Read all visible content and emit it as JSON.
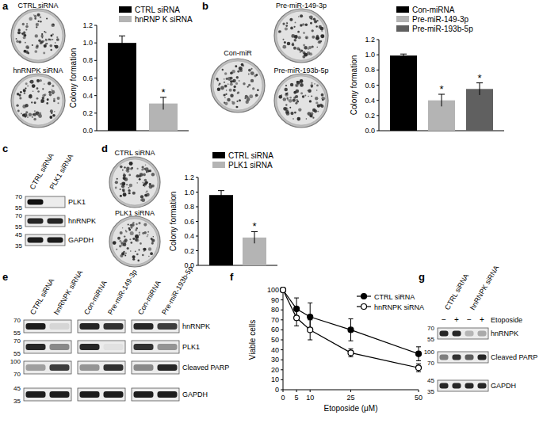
{
  "chart_data": [
    {
      "type": "bar",
      "ylabel": "Colony formation",
      "categories": [
        null
      ],
      "series": [
        {
          "name": "CTRL siRNA",
          "color": "#000000",
          "values": [
            1.0
          ],
          "errors": [
            0.08
          ]
        },
        {
          "name": "hnRNP K siRNA",
          "color": "#b4b4b4",
          "values": [
            0.31
          ],
          "errors": [
            0.07
          ],
          "annotation": "*"
        }
      ],
      "ylim": [
        0,
        1.2
      ],
      "yticks": [
        {
          "value": 0,
          "label": "0.0"
        },
        0.2,
        0.4,
        0.6,
        0.8,
        {
          "value": 1,
          "label": "1.0"
        },
        1.2
      ],
      "legend": "top"
    },
    {
      "type": "bar",
      "ylabel": "Colony formation",
      "categories": [
        null
      ],
      "series": [
        {
          "name": "Con-miRNA",
          "color": "#000000",
          "values": [
            0.99
          ],
          "errors": [
            0.02
          ]
        },
        {
          "name": "Pre-miR-149-3p",
          "color": "#b4b4b4",
          "values": [
            0.4
          ],
          "errors": [
            0.08
          ],
          "annotation": "*"
        },
        {
          "name": "Pre-miR-193b-5p",
          "color": "#606060",
          "values": [
            0.55
          ],
          "errors": [
            0.08
          ],
          "annotation": "*"
        }
      ],
      "ylim": [
        0,
        1.2
      ],
      "yticks": [
        {
          "value": 0,
          "label": "0.0"
        },
        0.2,
        0.4,
        0.6,
        0.8,
        {
          "value": 1,
          "label": "1.0"
        },
        1.2
      ],
      "legend": "top"
    },
    {
      "type": "bar",
      "ylabel": "Colony formation",
      "categories": [
        null
      ],
      "series": [
        {
          "name": "CTRL siRNA",
          "color": "#000000",
          "values": [
            0.96
          ],
          "errors": [
            0.06
          ]
        },
        {
          "name": "PLK1 siRNA",
          "color": "#b4b4b4",
          "values": [
            0.38
          ],
          "errors": [
            0.08
          ],
          "annotation": "*"
        }
      ],
      "ylim": [
        0,
        1.2
      ],
      "yticks": [
        {
          "value": 0,
          "label": "0.0"
        },
        0.2,
        0.4,
        0.6,
        0.8,
        {
          "value": 1,
          "label": "1.0"
        },
        1.2
      ],
      "legend": "top"
    },
    {
      "type": "line",
      "xlabel": "Etoposide (μM)",
      "ylabel": "Viable cells",
      "x": [
        0,
        5,
        10,
        25,
        50
      ],
      "series": [
        {
          "name": "CTRL siRNA",
          "color": "#000000",
          "marker": "circle",
          "values": [
            100,
            81,
            73,
            60,
            36
          ],
          "errors": [
            0,
            11,
            14,
            11,
            7
          ]
        },
        {
          "name": "hnRNPK siRNA",
          "color": "#000000",
          "marker": "circle-open",
          "values": [
            100,
            72,
            60,
            37,
            22
          ],
          "errors": [
            0,
            8,
            10,
            4,
            4
          ]
        }
      ],
      "xlim": [
        0,
        50
      ],
      "xticks": [
        0,
        5,
        10,
        25,
        50
      ],
      "ylim": [
        0,
        100
      ],
      "yticks": [
        0,
        10,
        20,
        30,
        40,
        50,
        60,
        70,
        80,
        90,
        100
      ],
      "legend": "top-right"
    }
  ],
  "figure": {
    "panel_labels": [
      "a",
      "b",
      "c",
      "d",
      "e",
      "f",
      "g"
    ],
    "plates": [
      [
        "CTRL siRNA",
        "hnRNPK siRNA"
      ],
      [
        "Con-miR",
        "Pre-miR-149-3p",
        "Pre-miR-193b-5p"
      ],
      [
        "CTRL siRNA",
        "PLK1 siRNA"
      ]
    ],
    "blots": [
      {
        "lanes": [
          "CTRL siRNA",
          "PLK1 siRNA"
        ],
        "rows": [
          {
            "name": "PLK1",
            "markers": [
              70,
              55
            ],
            "bands": [
              1,
              0
            ]
          },
          {
            "name": "hnRNPK",
            "markers": [
              70,
              55
            ],
            "bands": [
              0.9,
              0.9
            ]
          },
          {
            "name": "GAPDH",
            "markers": [
              45,
              35
            ],
            "bands": [
              0.95,
              0.95
            ]
          }
        ]
      },
      {
        "lanes": [
          "CTRL siRNA",
          "hnRNPK siRNA",
          "Con-miRNA",
          "Pre-miR-149-3p",
          "Con-miRNA",
          "Pre-miR-193b-5p"
        ],
        "rows": [
          {
            "name": "hnRNPK",
            "markers": [
              70,
              55
            ],
            "bands": [
              0.95,
              0.1,
              0.9,
              0.85,
              0.9,
              0.8
            ]
          },
          {
            "name": "PLK1",
            "markers": [
              70,
              55
            ],
            "bands": [
              0.9,
              0.45,
              0.9,
              0.05,
              0.85,
              0.4
            ]
          },
          {
            "name": "Cleaved PARP",
            "markers": [
              100,
              70
            ],
            "bands": [
              0.35,
              0.8,
              0.4,
              0.85,
              0.45,
              0.9
            ]
          },
          {
            "name": "GAPDH",
            "markers": [
              45,
              35
            ],
            "bands": [
              0.95,
              0.95,
              0.95,
              0.95,
              0.95,
              0.95
            ]
          }
        ]
      },
      {
        "lane_groups": [
          "CTRL siRNA",
          "hnRNPK siRNA"
        ],
        "treatment": {
          "label": "Etoposide",
          "values": [
            "−",
            "+",
            "−",
            "+"
          ]
        },
        "rows": [
          {
            "name": "hnRNPK",
            "markers": [
              70,
              55
            ],
            "bands": [
              0.9,
              0.9,
              0.25,
              0.3
            ]
          },
          {
            "name": "Cleaved PARP",
            "markers": [
              100,
              70
            ],
            "bands": [
              0.5,
              0.85,
              0.65,
              0.9
            ]
          },
          {
            "name": "GAPDH",
            "markers": [
              45,
              35
            ],
            "bands": [
              0.9,
              0.9,
              0.9,
              0.9
            ]
          }
        ]
      }
    ]
  }
}
